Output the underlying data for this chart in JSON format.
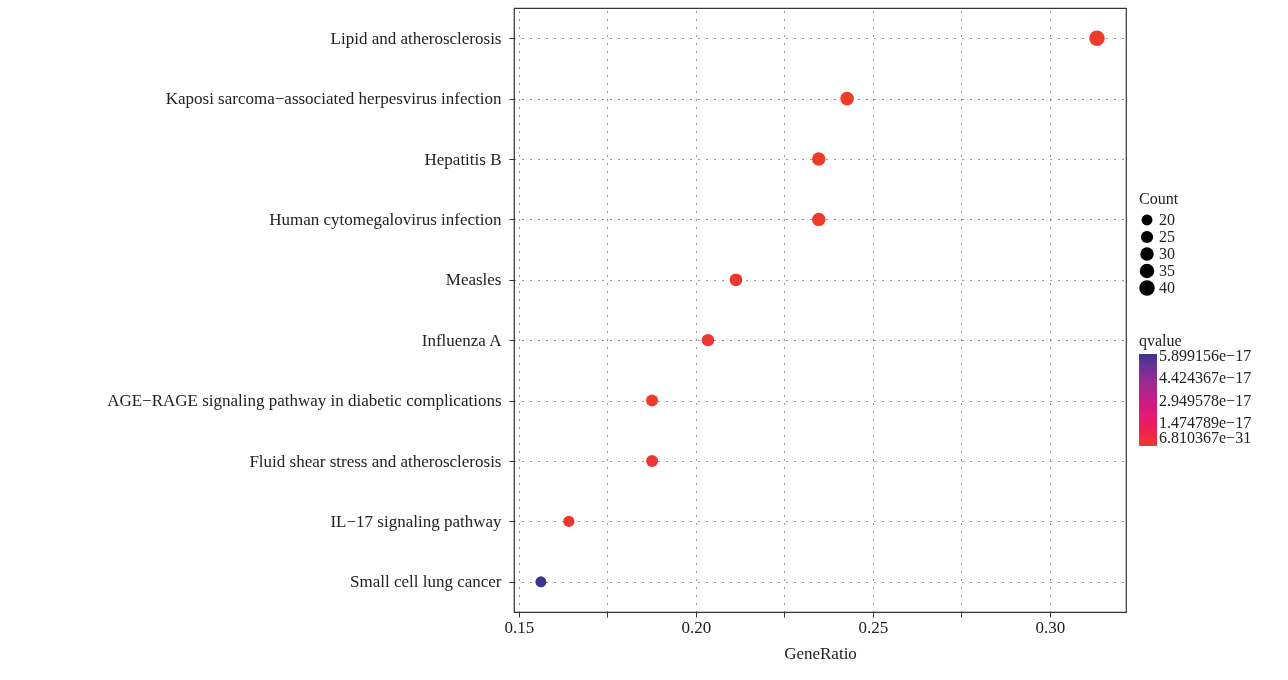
{
  "chart_data": {
    "type": "bubble",
    "xlabel": "GeneRatio",
    "legend_title": "Count",
    "clabel": "qvalue",
    "categories": [
      "Lipid and atherosclerosis",
      "Kaposi sarcoma−associated herpesvirus infection",
      "Hepatitis B",
      "Human cytomegalovirus infection",
      "Measles",
      "Influenza A",
      "AGE−RAGE signaling pathway in diabetic complications",
      "Fluid shear stress and atherosclerosis",
      "IL−17 signaling pathway",
      "Small cell lung cancer"
    ],
    "values": [
      0.3133,
      0.2427,
      0.2347,
      0.2347,
      0.2113,
      0.2034,
      0.1876,
      0.1876,
      0.1641,
      0.1562
    ],
    "sizes": [
      40,
      31,
      30,
      30,
      27,
      26,
      24,
      24,
      21,
      20
    ],
    "size_legend": [
      20,
      25,
      30,
      35,
      40
    ],
    "cvalues": [
      6.810367e-31,
      1e-25,
      1e-20,
      1e-20,
      5e-19,
      1.5e-18,
      1e-23,
      1.5e-18,
      2e-18,
      6e-17
    ],
    "clim": [
      6.810367e-31,
      6e-17
    ],
    "cticks": [
      {
        "value": 6.810367e-31,
        "label": "6.810367e−31"
      },
      {
        "value": 1.474789e-17,
        "label": "1.474789e−17"
      },
      {
        "value": 2.949578e-17,
        "label": "2.949578e−17"
      },
      {
        "value": 4.424367e-17,
        "label": "4.424367e−17"
      },
      {
        "value": 5.899156e-17,
        "label": "5.899156e−17"
      }
    ],
    "xlim": [
      0.1486,
      0.3215
    ],
    "xticks": [
      0.15,
      {
        "value": 0.175,
        "label": null
      },
      {
        "value": 0.2,
        "label": "0.20"
      },
      {
        "value": 0.225,
        "label": null
      },
      {
        "value": 0.25,
        "label": "0.25"
      },
      {
        "value": 0.275,
        "label": null
      },
      {
        "value": 0.3,
        "label": "0.30"
      }
    ],
    "grid": true,
    "marker": "circle",
    "orientation": "horizontal"
  }
}
